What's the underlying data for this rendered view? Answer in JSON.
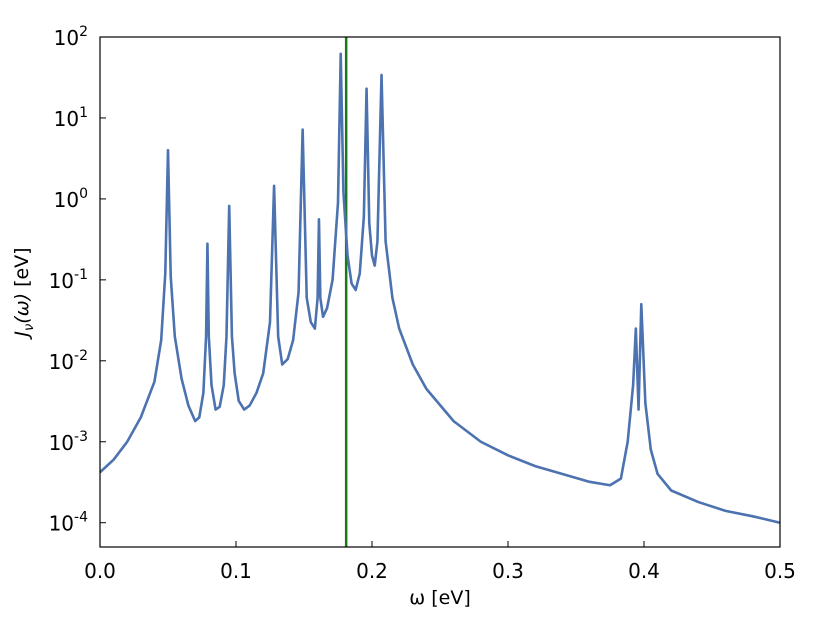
{
  "chart_data": {
    "type": "line",
    "title": "",
    "xlabel": "ω [eV]",
    "ylabel": "J_ν(ω) [eV]",
    "xlim": [
      0.0,
      0.5
    ],
    "ylim": [
      5e-05,
      100
    ],
    "yscale": "log",
    "grid": false,
    "x_ticks": [
      "0.0",
      "0.1",
      "0.2",
      "0.3",
      "0.4",
      "0.5"
    ],
    "y_ticks": [
      {
        "base": "10",
        "exp": "2"
      },
      {
        "base": "10",
        "exp": "1"
      },
      {
        "base": "10",
        "exp": "0"
      },
      {
        "base": "10",
        "exp": "-1"
      },
      {
        "base": "10",
        "exp": "-2"
      },
      {
        "base": "10",
        "exp": "-3"
      },
      {
        "base": "10",
        "exp": "-4"
      }
    ],
    "series": [
      {
        "color": "#4c72b0",
        "peaks": [
          {
            "x": 0.05,
            "y": 4.0
          },
          {
            "x": 0.079,
            "y": 0.28
          },
          {
            "x": 0.095,
            "y": 0.82
          },
          {
            "x": 0.128,
            "y": 1.45
          },
          {
            "x": 0.149,
            "y": 7.2
          },
          {
            "x": 0.161,
            "y": 0.56
          },
          {
            "x": 0.177,
            "y": 62
          },
          {
            "x": 0.196,
            "y": 23
          },
          {
            "x": 0.207,
            "y": 34
          },
          {
            "x": 0.394,
            "y": 0.025
          },
          {
            "x": 0.398,
            "y": 0.05
          }
        ],
        "points": [
          [
            0.0,
            0.00042
          ],
          [
            0.01,
            0.0006
          ],
          [
            0.02,
            0.001
          ],
          [
            0.03,
            0.002
          ],
          [
            0.04,
            0.0055
          ],
          [
            0.045,
            0.018
          ],
          [
            0.048,
            0.12
          ],
          [
            0.05,
            4.0
          ],
          [
            0.052,
            0.11
          ],
          [
            0.055,
            0.02
          ],
          [
            0.06,
            0.006
          ],
          [
            0.065,
            0.0028
          ],
          [
            0.07,
            0.0018
          ],
          [
            0.073,
            0.002
          ],
          [
            0.076,
            0.004
          ],
          [
            0.078,
            0.02
          ],
          [
            0.079,
            0.28
          ],
          [
            0.08,
            0.02
          ],
          [
            0.082,
            0.005
          ],
          [
            0.085,
            0.0025
          ],
          [
            0.088,
            0.0027
          ],
          [
            0.091,
            0.005
          ],
          [
            0.093,
            0.02
          ],
          [
            0.095,
            0.82
          ],
          [
            0.097,
            0.02
          ],
          [
            0.099,
            0.007
          ],
          [
            0.102,
            0.0032
          ],
          [
            0.106,
            0.0025
          ],
          [
            0.11,
            0.0028
          ],
          [
            0.115,
            0.004
          ],
          [
            0.12,
            0.007
          ],
          [
            0.125,
            0.03
          ],
          [
            0.128,
            1.45
          ],
          [
            0.131,
            0.02
          ],
          [
            0.134,
            0.009
          ],
          [
            0.138,
            0.0105
          ],
          [
            0.142,
            0.018
          ],
          [
            0.146,
            0.07
          ],
          [
            0.149,
            7.2
          ],
          [
            0.152,
            0.06
          ],
          [
            0.155,
            0.03
          ],
          [
            0.158,
            0.025
          ],
          [
            0.16,
            0.06
          ],
          [
            0.161,
            0.56
          ],
          [
            0.162,
            0.06
          ],
          [
            0.164,
            0.035
          ],
          [
            0.167,
            0.045
          ],
          [
            0.171,
            0.1
          ],
          [
            0.175,
            0.9
          ],
          [
            0.177,
            62
          ],
          [
            0.179,
            1.2
          ],
          [
            0.182,
            0.2
          ],
          [
            0.185,
            0.09
          ],
          [
            0.188,
            0.075
          ],
          [
            0.191,
            0.12
          ],
          [
            0.194,
            0.6
          ],
          [
            0.196,
            23
          ],
          [
            0.198,
            0.5
          ],
          [
            0.2,
            0.2
          ],
          [
            0.202,
            0.15
          ],
          [
            0.204,
            0.3
          ],
          [
            0.207,
            34
          ],
          [
            0.21,
            0.3
          ],
          [
            0.215,
            0.06
          ],
          [
            0.22,
            0.025
          ],
          [
            0.23,
            0.009
          ],
          [
            0.24,
            0.0045
          ],
          [
            0.26,
            0.0018
          ],
          [
            0.28,
            0.001
          ],
          [
            0.3,
            0.00068
          ],
          [
            0.32,
            0.0005
          ],
          [
            0.34,
            0.0004
          ],
          [
            0.36,
            0.00032
          ],
          [
            0.375,
            0.00029
          ],
          [
            0.383,
            0.00035
          ],
          [
            0.388,
            0.001
          ],
          [
            0.392,
            0.005
          ],
          [
            0.394,
            0.025
          ],
          [
            0.396,
            0.0025
          ],
          [
            0.398,
            0.05
          ],
          [
            0.401,
            0.003
          ],
          [
            0.405,
            0.0008
          ],
          [
            0.41,
            0.0004
          ],
          [
            0.42,
            0.00025
          ],
          [
            0.44,
            0.00018
          ],
          [
            0.46,
            0.00014
          ],
          [
            0.48,
            0.00012
          ],
          [
            0.5,
            0.0001
          ]
        ]
      }
    ],
    "reference_line": {
      "x": 0.181,
      "color": "#1a7a1a"
    }
  }
}
